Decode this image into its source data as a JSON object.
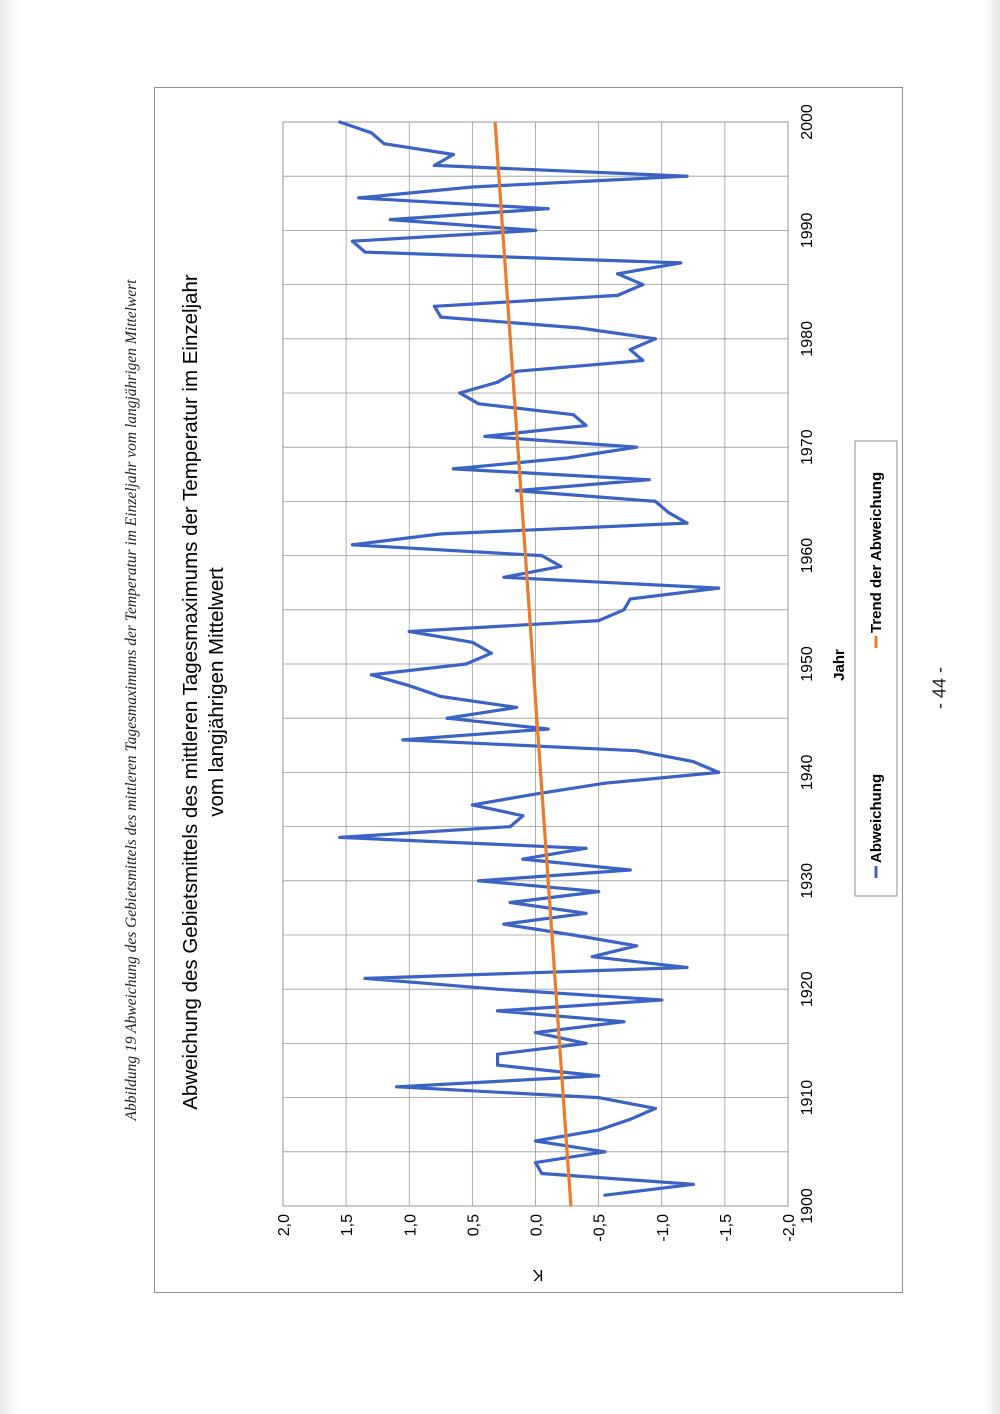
{
  "page": {
    "caption": "Abbildung 19 Abweichung des Gebietsmittels des mittleren Tagesmaximums der Temperatur im Einzeljahr vom langjährigen Mittelwert",
    "page_number": "- 44 -"
  },
  "colors": {
    "series_abweichung": "#3b63c4",
    "series_trend": "#ec7a2c",
    "grid": "#9a9a9a",
    "axis_text": "#000000"
  },
  "chart_data": {
    "type": "line",
    "orientation": "rotated-90-ccw",
    "title_line1": "Abweichung des Gebietsmittels des mittleren Tagesmaximums der Temperatur im Einzeljahr",
    "title_line2": "vom langjährigen Mittelwert",
    "xlabel": "Jahr",
    "ylabel": "K",
    "xlim": [
      1900,
      2000
    ],
    "ylim": [
      -2.0,
      2.0
    ],
    "x_ticks": [
      "1900",
      "1910",
      "1920",
      "1930",
      "1940",
      "1950",
      "1960",
      "1970",
      "1980",
      "1990",
      "2000"
    ],
    "y_ticks": [
      "2,0",
      "1,5",
      "1,0",
      "0,5",
      "0,0",
      "-0,5",
      "-1,0",
      "-1,5",
      "-2,0"
    ],
    "x_tick_values": [
      1900,
      1910,
      1920,
      1930,
      1940,
      1950,
      1960,
      1970,
      1980,
      1990,
      2000
    ],
    "y_tick_values": [
      2.0,
      1.5,
      1.0,
      0.5,
      0.0,
      -0.5,
      -1.0,
      -1.5,
      -2.0
    ],
    "grid": true,
    "legend_position": "bottom",
    "series": [
      {
        "name": "Abweichung",
        "x": [
          1901,
          1902,
          1903,
          1904,
          1905,
          1906,
          1907,
          1908,
          1909,
          1910,
          1911,
          1912,
          1913,
          1914,
          1915,
          1916,
          1917,
          1918,
          1919,
          1920,
          1921,
          1922,
          1923,
          1924,
          1925,
          1926,
          1927,
          1928,
          1929,
          1930,
          1931,
          1932,
          1933,
          1934,
          1935,
          1936,
          1937,
          1938,
          1939,
          1940,
          1941,
          1942,
          1943,
          1944,
          1945,
          1946,
          1947,
          1948,
          1949,
          1950,
          1951,
          1952,
          1953,
          1954,
          1955,
          1956,
          1957,
          1958,
          1959,
          1960,
          1961,
          1962,
          1963,
          1964,
          1965,
          1966,
          1967,
          1968,
          1969,
          1970,
          1971,
          1972,
          1973,
          1974,
          1975,
          1976,
          1977,
          1978,
          1979,
          1980,
          1981,
          1982,
          1983,
          1984,
          1985,
          1986,
          1987,
          1988,
          1989,
          1990,
          1991,
          1992,
          1993,
          1994,
          1995,
          1996,
          1997,
          1998,
          1999,
          2000
        ],
        "values": [
          -0.55,
          -1.25,
          -0.05,
          0.0,
          -0.55,
          0.0,
          -0.5,
          -0.75,
          -0.95,
          -0.5,
          1.1,
          -0.5,
          0.3,
          0.3,
          -0.4,
          0.0,
          -0.7,
          0.3,
          -1.0,
          0.3,
          1.35,
          -1.2,
          -0.45,
          -0.8,
          -0.3,
          0.25,
          -0.4,
          0.2,
          -0.5,
          0.45,
          -0.75,
          0.1,
          -0.4,
          1.55,
          0.2,
          0.1,
          0.5,
          0.0,
          -0.55,
          -1.45,
          -1.25,
          -0.8,
          1.05,
          -0.1,
          0.7,
          0.15,
          0.75,
          1.0,
          1.3,
          0.55,
          0.35,
          0.5,
          1.0,
          -0.5,
          -0.7,
          -0.75,
          -1.45,
          0.25,
          -0.2,
          -0.05,
          1.45,
          0.75,
          -1.2,
          -1.05,
          -0.95,
          0.15,
          -0.9,
          0.65,
          -0.25,
          -0.8,
          0.4,
          -0.4,
          -0.3,
          0.45,
          0.6,
          0.3,
          0.15,
          -0.85,
          -0.75,
          -0.95,
          -0.35,
          0.75,
          0.8,
          -0.65,
          -0.85,
          -0.65,
          -1.15,
          1.35,
          1.45,
          0.0,
          1.15,
          -0.1,
          1.4,
          0.5,
          -1.2,
          0.8,
          0.65,
          1.2,
          1.3,
          1.55
        ]
      },
      {
        "name": "Trend der Abweichung",
        "x": [
          1900,
          2000
        ],
        "values": [
          -0.28,
          0.32
        ]
      }
    ]
  }
}
